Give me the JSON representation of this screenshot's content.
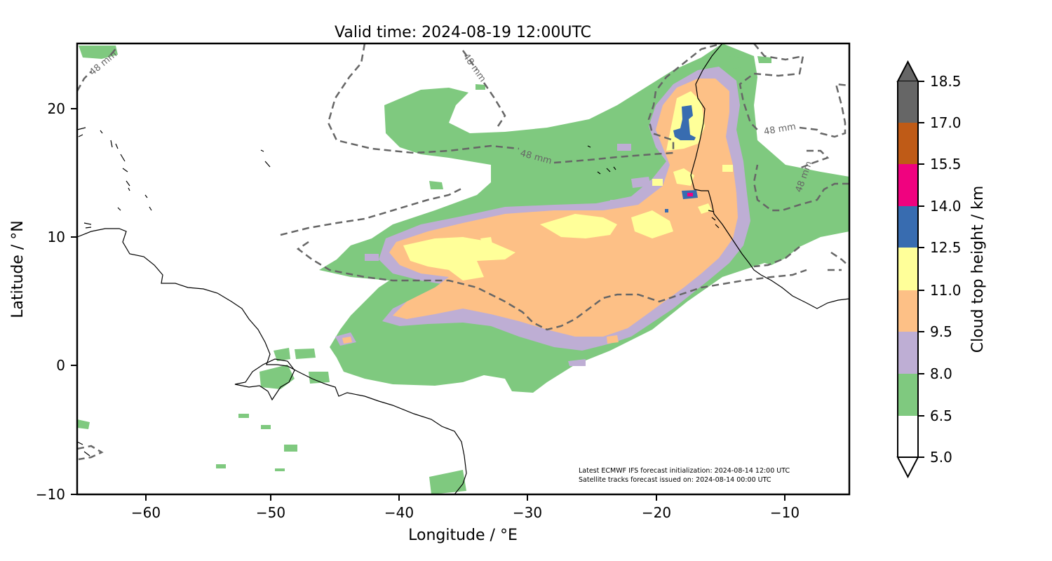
{
  "title": "Valid time: 2024-08-19 12:00UTC",
  "x_axis": {
    "label": "Longitude / °E",
    "range": [
      -65,
      -5
    ],
    "ticks": [
      -60,
      -50,
      -40,
      -30,
      -20,
      -10
    ],
    "tick_labels": [
      "−60",
      "−50",
      "−40",
      "−30",
      "−20",
      "−10"
    ]
  },
  "y_axis": {
    "label": "Latitude / °N",
    "range": [
      -10,
      25
    ],
    "ticks": [
      -10,
      0,
      10,
      20
    ],
    "tick_labels": [
      "−10",
      "0",
      "10",
      "20"
    ]
  },
  "colorbar": {
    "label": "Cloud top height / km",
    "levels": [
      "5.0",
      "6.5",
      "8.0",
      "9.5",
      "11.0",
      "12.5",
      "14.0",
      "15.5",
      "17.0",
      "18.5"
    ],
    "colors": [
      "#ffffff",
      "#7fc97f",
      "#beaed4",
      "#fdc086",
      "#ffff99",
      "#386cb0",
      "#f0027f",
      "#bf5b17",
      "#666666"
    ],
    "extend": "both"
  },
  "contour_label": "48 mm",
  "annotation": {
    "line1": "Latest ECMWF IFS forecast initialization: 2024-08-14 12:00 UTC",
    "line2": "Satellite tracks forecast issued on: 2024-08-14 00:00 UTC"
  },
  "chart_data": {
    "type": "heatmap",
    "title": "Valid time: 2024-08-19 12:00UTC",
    "xlabel": "Longitude / °E",
    "ylabel": "Latitude / °N",
    "xlim": [
      -65,
      -5
    ],
    "ylim": [
      -10,
      25
    ],
    "grid": false,
    "legend": "colorbar-right",
    "variable": "Cloud top height / km",
    "contour_level": "48 mm",
    "regions": [
      {
        "level": "6.5-8.0",
        "description": "broad convective cloud band across the tropical Atlantic"
      },
      {
        "level": "9.5-11.0",
        "description": "core band from about -43E to -14E, 3N to 16N"
      },
      {
        "level": "11.0-12.5",
        "description": "embedded high tops near -42 to -22E and near -18E 19N"
      },
      {
        "level": "12.5-14.0",
        "description": "small cells near -18E 18-20N and -17E 13N"
      }
    ]
  }
}
